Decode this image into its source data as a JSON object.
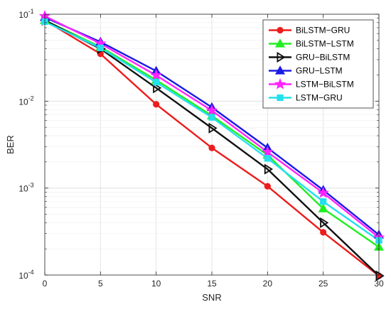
{
  "chart_data": {
    "type": "line",
    "title": "",
    "xlabel": "SNR",
    "ylabel": "BER",
    "xlim": [
      0,
      30
    ],
    "ylim": [
      0.0001,
      0.1
    ],
    "yscale": "log",
    "grid": true,
    "legend_position": "top-right",
    "x": [
      0,
      5,
      10,
      15,
      20,
      25,
      30
    ],
    "x_ticks": [
      "0",
      "5",
      "10",
      "15",
      "20",
      "25",
      "30"
    ],
    "y_ticks": [
      {
        "base": "10",
        "exp": "-4",
        "value": 0.0001
      },
      {
        "base": "10",
        "exp": "-3",
        "value": 0.001
      },
      {
        "base": "10",
        "exp": "-2",
        "value": 0.01
      },
      {
        "base": "10",
        "exp": "-1",
        "value": 0.1
      }
    ],
    "series": [
      {
        "name": "BiLSTM−GRU",
        "color": "#ee1c1c",
        "marker": "circle",
        "values": [
          0.085,
          0.035,
          0.0092,
          0.0029,
          0.00105,
          0.00031,
          9.8e-05
        ]
      },
      {
        "name": "BiLSTM−LSTM",
        "color": "#22ee22",
        "marker": "triangle-up",
        "values": [
          0.085,
          0.042,
          0.0175,
          0.0068,
          0.0024,
          0.00058,
          0.00021
        ]
      },
      {
        "name": "GRU−BiLSTM",
        "color": "#111111",
        "marker": "triangle-right",
        "values": [
          0.085,
          0.04,
          0.0142,
          0.0049,
          0.00165,
          0.0004,
          9.8e-05
        ]
      },
      {
        "name": "GRU−LSTM",
        "color": "#1a1ae6",
        "marker": "triangle-up",
        "values": [
          0.092,
          0.048,
          0.0222,
          0.0085,
          0.0029,
          0.00095,
          0.00029
        ]
      },
      {
        "name": "LSTM−BiLSTM",
        "color": "#ff22ff",
        "marker": "star",
        "values": [
          0.095,
          0.046,
          0.0198,
          0.0078,
          0.0026,
          0.00088,
          0.00027
        ]
      },
      {
        "name": "LSTM−GRU",
        "color": "#22e0ee",
        "marker": "square",
        "values": [
          0.082,
          0.041,
          0.0165,
          0.0065,
          0.0022,
          0.0007,
          0.00025
        ]
      }
    ]
  }
}
